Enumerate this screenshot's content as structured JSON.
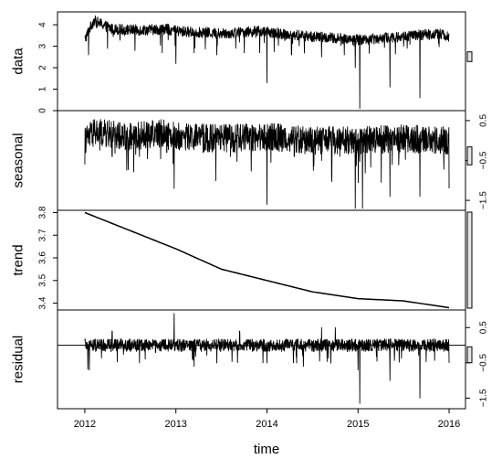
{
  "chart_data": {
    "type": "line",
    "figure": "stl decomposition",
    "xlabel": "time",
    "x_ticks": [
      "2012",
      "2013",
      "2014",
      "2015",
      "2016"
    ],
    "x_range": [
      2011.7,
      2016.18
    ],
    "panels": [
      {
        "name": "data",
        "ylabel": "data",
        "ylim": [
          0,
          4.6
        ],
        "y_ticks": [
          0,
          1,
          2,
          3,
          4
        ],
        "y_tick_labels": [
          "0",
          "1",
          "2",
          "3",
          "4"
        ],
        "axis_side": "left",
        "level_points": [
          [
            2012.0,
            3.3
          ],
          [
            2012.05,
            3.8
          ],
          [
            2012.1,
            4.2
          ],
          [
            2012.3,
            3.8
          ],
          [
            2012.6,
            3.75
          ],
          [
            2012.9,
            3.8
          ],
          [
            2013.0,
            3.7
          ],
          [
            2013.5,
            3.6
          ],
          [
            2013.9,
            3.7
          ],
          [
            2014.0,
            3.65
          ],
          [
            2014.5,
            3.45
          ],
          [
            2015.0,
            3.3
          ],
          [
            2015.5,
            3.45
          ],
          [
            2015.9,
            3.6
          ],
          [
            2016.0,
            3.4
          ]
        ],
        "dips": [
          [
            2012.04,
            2.6
          ],
          [
            2012.25,
            2.9
          ],
          [
            2012.55,
            2.8
          ],
          [
            2012.85,
            2.7
          ],
          [
            2013.0,
            2.2
          ],
          [
            2013.2,
            2.7
          ],
          [
            2013.45,
            2.6
          ],
          [
            2013.75,
            2.7
          ],
          [
            2013.92,
            2.7
          ],
          [
            2014.0,
            1.3
          ],
          [
            2014.27,
            2.6
          ],
          [
            2014.6,
            2.5
          ],
          [
            2014.85,
            2.6
          ],
          [
            2014.97,
            2.0
          ],
          [
            2015.02,
            0.1
          ],
          [
            2015.35,
            1.1
          ],
          [
            2015.68,
            0.6
          ],
          [
            2016.02,
            1.9
          ]
        ],
        "noise": 0.25
      },
      {
        "name": "seasonal",
        "ylabel": "seasonal",
        "ylim": [
          -1.75,
          0.75
        ],
        "y_ticks": [
          -1.5,
          -0.5,
          0.5
        ],
        "y_tick_labels": [
          "-1.5",
          "-0.5",
          "0.5"
        ],
        "axis_side": "right",
        "level_points": [
          [
            2012.0,
            0.0
          ],
          [
            2012.1,
            0.2
          ],
          [
            2012.5,
            0.1
          ],
          [
            2012.9,
            0.2
          ],
          [
            2013.0,
            0.1
          ],
          [
            2013.5,
            0.05
          ],
          [
            2014.0,
            0.1
          ],
          [
            2014.5,
            0.0
          ],
          [
            2015.0,
            0.0
          ],
          [
            2015.5,
            0.05
          ],
          [
            2016.0,
            0.0
          ]
        ],
        "dips": [
          [
            2012.0,
            -0.6
          ],
          [
            2012.3,
            -0.4
          ],
          [
            2012.6,
            -0.4
          ],
          [
            2012.9,
            -0.3
          ],
          [
            2012.98,
            -1.2
          ],
          [
            2013.3,
            -0.3
          ],
          [
            2013.6,
            -0.4
          ],
          [
            2014.0,
            -1.6
          ],
          [
            2014.3,
            -0.4
          ],
          [
            2014.6,
            -0.5
          ],
          [
            2014.8,
            -0.4
          ],
          [
            2014.97,
            -1.7
          ],
          [
            2015.05,
            -1.7
          ],
          [
            2015.35,
            -1.4
          ],
          [
            2015.68,
            -1.4
          ],
          [
            2016.0,
            -1.2
          ]
        ],
        "noise": 0.35
      },
      {
        "name": "trend",
        "ylabel": "trend",
        "ylim": [
          3.37,
          3.81
        ],
        "y_ticks": [
          3.4,
          3.5,
          3.6,
          3.7,
          3.8
        ],
        "y_tick_labels": [
          "3.4",
          "3.5",
          "3.6",
          "3.7",
          "3.8"
        ],
        "axis_side": "left",
        "smooth_points": [
          [
            2012.0,
            3.8
          ],
          [
            2012.5,
            3.72
          ],
          [
            2013.0,
            3.64
          ],
          [
            2013.5,
            3.55
          ],
          [
            2014.0,
            3.5
          ],
          [
            2014.5,
            3.45
          ],
          [
            2015.0,
            3.42
          ],
          [
            2015.5,
            3.41
          ],
          [
            2016.0,
            3.38
          ]
        ]
      },
      {
        "name": "residual",
        "ylabel": "residual",
        "ylim": [
          -1.8,
          1.0
        ],
        "y_ticks": [
          -1.5,
          -0.5,
          0.5
        ],
        "y_tick_labels": [
          "-1.5",
          "-0.5",
          "0.5"
        ],
        "axis_side": "right",
        "zero_line": true,
        "level_points": [
          [
            2012.0,
            0.0
          ],
          [
            2016.0,
            0.0
          ]
        ],
        "spikes": [
          [
            2012.05,
            -0.7
          ],
          [
            2012.3,
            0.4
          ],
          [
            2012.6,
            -0.5
          ],
          [
            2012.98,
            0.9
          ],
          [
            2013.2,
            -0.6
          ],
          [
            2013.45,
            -0.5
          ],
          [
            2013.7,
            0.4
          ],
          [
            2014.0,
            -0.5
          ],
          [
            2014.4,
            -0.6
          ],
          [
            2014.6,
            0.5
          ],
          [
            2014.75,
            0.5
          ],
          [
            2015.0,
            -0.7
          ],
          [
            2015.02,
            -1.65
          ],
          [
            2015.35,
            -1.0
          ],
          [
            2015.68,
            -1.5
          ],
          [
            2016.0,
            -0.5
          ]
        ],
        "noise": 0.18
      }
    ]
  }
}
